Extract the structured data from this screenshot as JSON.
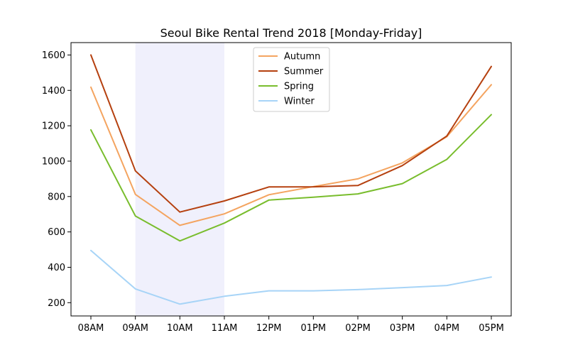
{
  "chart_data": {
    "type": "line",
    "title": "Seoul Bike Rental Trend 2018 [Monday-Friday]",
    "xlabel": "",
    "ylabel": "",
    "categories": [
      "08AM",
      "09AM",
      "10AM",
      "11AM",
      "12PM",
      "01PM",
      "02PM",
      "03PM",
      "04PM",
      "05PM"
    ],
    "ylim": [
      125,
      1670
    ],
    "yticks": [
      200,
      400,
      600,
      800,
      1000,
      1200,
      1400,
      1600
    ],
    "grid": false,
    "legend_position": "top-center",
    "highlight_span": {
      "from": "09AM",
      "to": "11AM",
      "color": "#e6e6fa"
    },
    "series": [
      {
        "name": "Autumn",
        "color": "#f4a460",
        "values": [
          1418,
          812,
          637,
          702,
          810,
          856,
          900,
          990,
          1138,
          1432
        ]
      },
      {
        "name": "Summer",
        "color": "#b5400f",
        "values": [
          1600,
          945,
          712,
          775,
          854,
          855,
          862,
          975,
          1142,
          1535
        ]
      },
      {
        "name": "Spring",
        "color": "#79bd2d",
        "values": [
          1177,
          690,
          549,
          650,
          780,
          796,
          815,
          873,
          1010,
          1263
        ]
      },
      {
        "name": "Winter",
        "color": "#a7d4f7",
        "values": [
          495,
          278,
          192,
          236,
          267,
          267,
          274,
          285,
          297,
          345
        ]
      }
    ]
  }
}
